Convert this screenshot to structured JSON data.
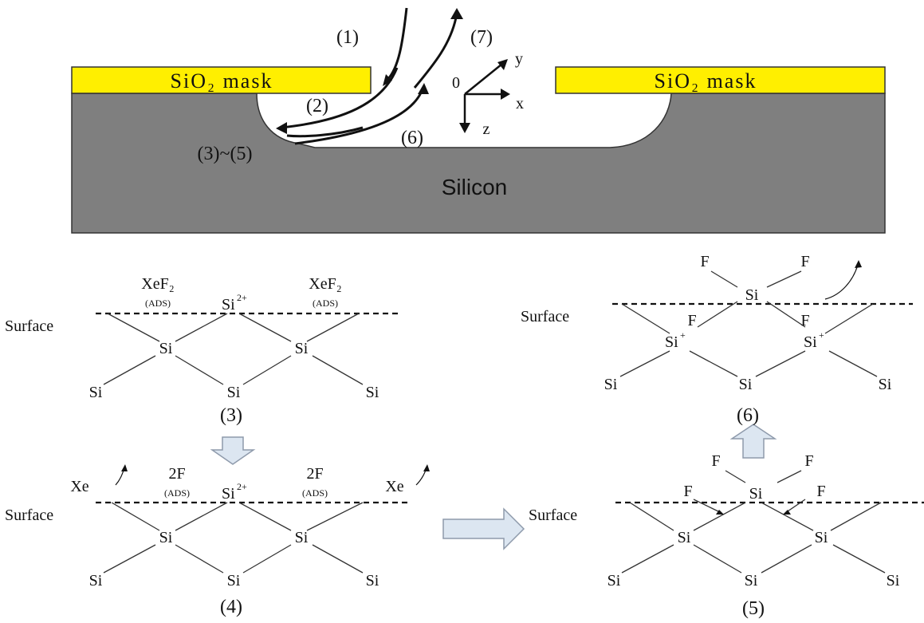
{
  "top": {
    "mask_left": "SiO₂ mask",
    "mask_right": "SiO₂ mask",
    "substrate": "Silicon",
    "steps": {
      "s1": "(1)",
      "s2": "(2)",
      "s345": "(3)~(5)",
      "s6": "(6)",
      "s7": "(7)"
    },
    "axes": {
      "origin": "0",
      "x": "x",
      "y": "y",
      "z": "z"
    }
  },
  "panel3": {
    "surface": "Surface",
    "adsorbate": "XeF₂",
    "ads": "(ADS)",
    "si": "Si",
    "si_charge": "2+",
    "caption": "(3)"
  },
  "panel4": {
    "surface": "Surface",
    "adsorbate": "2F",
    "ads": "(ADS)",
    "xe": "Xe",
    "si": "Si",
    "si_charge": "2+",
    "caption": "(4)"
  },
  "panel5": {
    "surface": "Surface",
    "f": "F",
    "si": "Si",
    "caption": "(5)"
  },
  "panel6": {
    "surface": "Surface",
    "f": "F",
    "si": "Si",
    "si_charge": "+",
    "caption": "(6)"
  },
  "colors": {
    "mask": "#ffef00",
    "substrate": "#7f7f7f",
    "arrow_fill": "#dce6f1",
    "arrow_stroke": "#8e9aab"
  }
}
